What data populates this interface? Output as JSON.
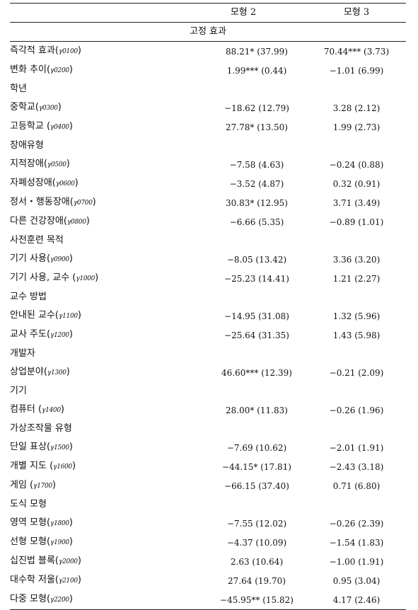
{
  "header": {
    "col_model2": "모형 2",
    "col_model3": "모형 3"
  },
  "section_title": "고정 효과",
  "rows": [
    {
      "label": "즉각적 효과(",
      "sub": "γ0100",
      "close": ")",
      "m2": "88.21* (37.99)",
      "m3": "70.44*** (3.73)"
    },
    {
      "label": "변화 추이(",
      "sub": "γ0200",
      "close": ")",
      "m2": "1.99*** (0.44)",
      "m3": "−1.01 (6.99)"
    },
    {
      "label": "학년",
      "sub": "",
      "close": "",
      "m2": "",
      "m3": ""
    },
    {
      "label": "중학교(",
      "sub": "γ0300",
      "close": ")",
      "m2": "−18.62 (12.79)",
      "m3": "3.28 (2.12)"
    },
    {
      "label": "고등학교 (",
      "sub": "γ0400",
      "close": ")",
      "m2": "27.78* (13.50)",
      "m3": "1.99 (2.73)"
    },
    {
      "label": "장애유형",
      "sub": "",
      "close": "",
      "m2": "",
      "m3": ""
    },
    {
      "label": "지적장애(",
      "sub": "γ0500",
      "close": ")",
      "m2": "−7.58 (4.63)",
      "m3": "−0.24 (0.88)"
    },
    {
      "label": "자폐성장애(",
      "sub": "γ0600",
      "close": ")",
      "m2": "−3.52 (4.87)",
      "m3": "0.32 (0.91)"
    },
    {
      "label": "정서・행동장애(",
      "sub": "γ0700",
      "close": ")",
      "m2": "30.83* (12.95)",
      "m3": "3.71 (3.49)"
    },
    {
      "label": "다른 건강장애(",
      "sub": "γ0800",
      "close": ")",
      "m2": "−6.66 (5.35)",
      "m3": "−0.89 (1.01)"
    },
    {
      "label": "사전훈련 목적",
      "sub": "",
      "close": "",
      "m2": "",
      "m3": ""
    },
    {
      "label": "기기 사용(",
      "sub": "γ0900",
      "close": ")",
      "m2": "−8.05 (13.42)",
      "m3": "3.36 (3.20)"
    },
    {
      "label": "기기 사용, 교수 (",
      "sub": "γ1000",
      "close": ")",
      "m2": "−25.23 (14.41)",
      "m3": "1.21 (2.27)"
    },
    {
      "label": "교수 방법",
      "sub": "",
      "close": "",
      "m2": "",
      "m3": ""
    },
    {
      "label": "안내된 교수(",
      "sub": "γ1100",
      "close": ")",
      "m2": "−14.95 (31.08)",
      "m3": "1.32 (5.96)"
    },
    {
      "label": "교사 주도(",
      "sub": "γ1200",
      "close": ")",
      "m2": "−25.64 (31.35)",
      "m3": "1.43 (5.98)"
    },
    {
      "label": "개발자",
      "sub": "",
      "close": "",
      "m2": "",
      "m3": ""
    },
    {
      "label": "상업분야(",
      "sub": "γ1300",
      "close": ")",
      "m2": "46.60*** (12.39)",
      "m3": "−0.21 (2.09)"
    },
    {
      "label": "기기",
      "sub": "",
      "close": "",
      "m2": "",
      "m3": ""
    },
    {
      "label": "컴퓨터 (",
      "sub": "γ1400",
      "close": ")",
      "m2": "28.00* (11.83)",
      "m3": "−0.26 (1.96)"
    },
    {
      "label": "가상조작물 유형",
      "sub": "",
      "close": "",
      "m2": "",
      "m3": ""
    },
    {
      "label": "단일 표상(",
      "sub": "γ1500",
      "close": ")",
      "m2": "−7.69 (10.62)",
      "m3": "−2.01 (1.91)"
    },
    {
      "label": "개별 지도 (",
      "sub": "γ1600",
      "close": ")",
      "m2": "−44.15* (17.81)",
      "m3": "−2.43 (3.18)"
    },
    {
      "label": "게임 (",
      "sub": "γ1700",
      "close": ")",
      "m2": "−66.15 (37.40)",
      "m3": "0.71 (6.80)"
    },
    {
      "label": "도식 모형",
      "sub": "",
      "close": "",
      "m2": "",
      "m3": ""
    },
    {
      "label": "영역 모형(",
      "sub": "γ1800",
      "close": ")",
      "m2": "−7.55 (12.02)",
      "m3": "−0.26 (2.39)"
    },
    {
      "label": "선형 모형(",
      "sub": "γ1900",
      "close": ")",
      "m2": "−4.37 (10.09)",
      "m3": "−1.54 (1.83)"
    },
    {
      "label": "십진법 블록(",
      "sub": "γ2000",
      "close": ")",
      "m2": "2.63 (10.64)",
      "m3": "−1.00 (1.91)"
    },
    {
      "label": "대수학 저울(",
      "sub": "γ2100",
      "close": ")",
      "m2": "27.64 (19.70)",
      "m3": "0.95 (3.04)"
    },
    {
      "label": "다중 모형(",
      "sub": "γ2200",
      "close": ")",
      "m2": "−45.95** (15.82)",
      "m3": "4.17 (2.46)"
    }
  ]
}
